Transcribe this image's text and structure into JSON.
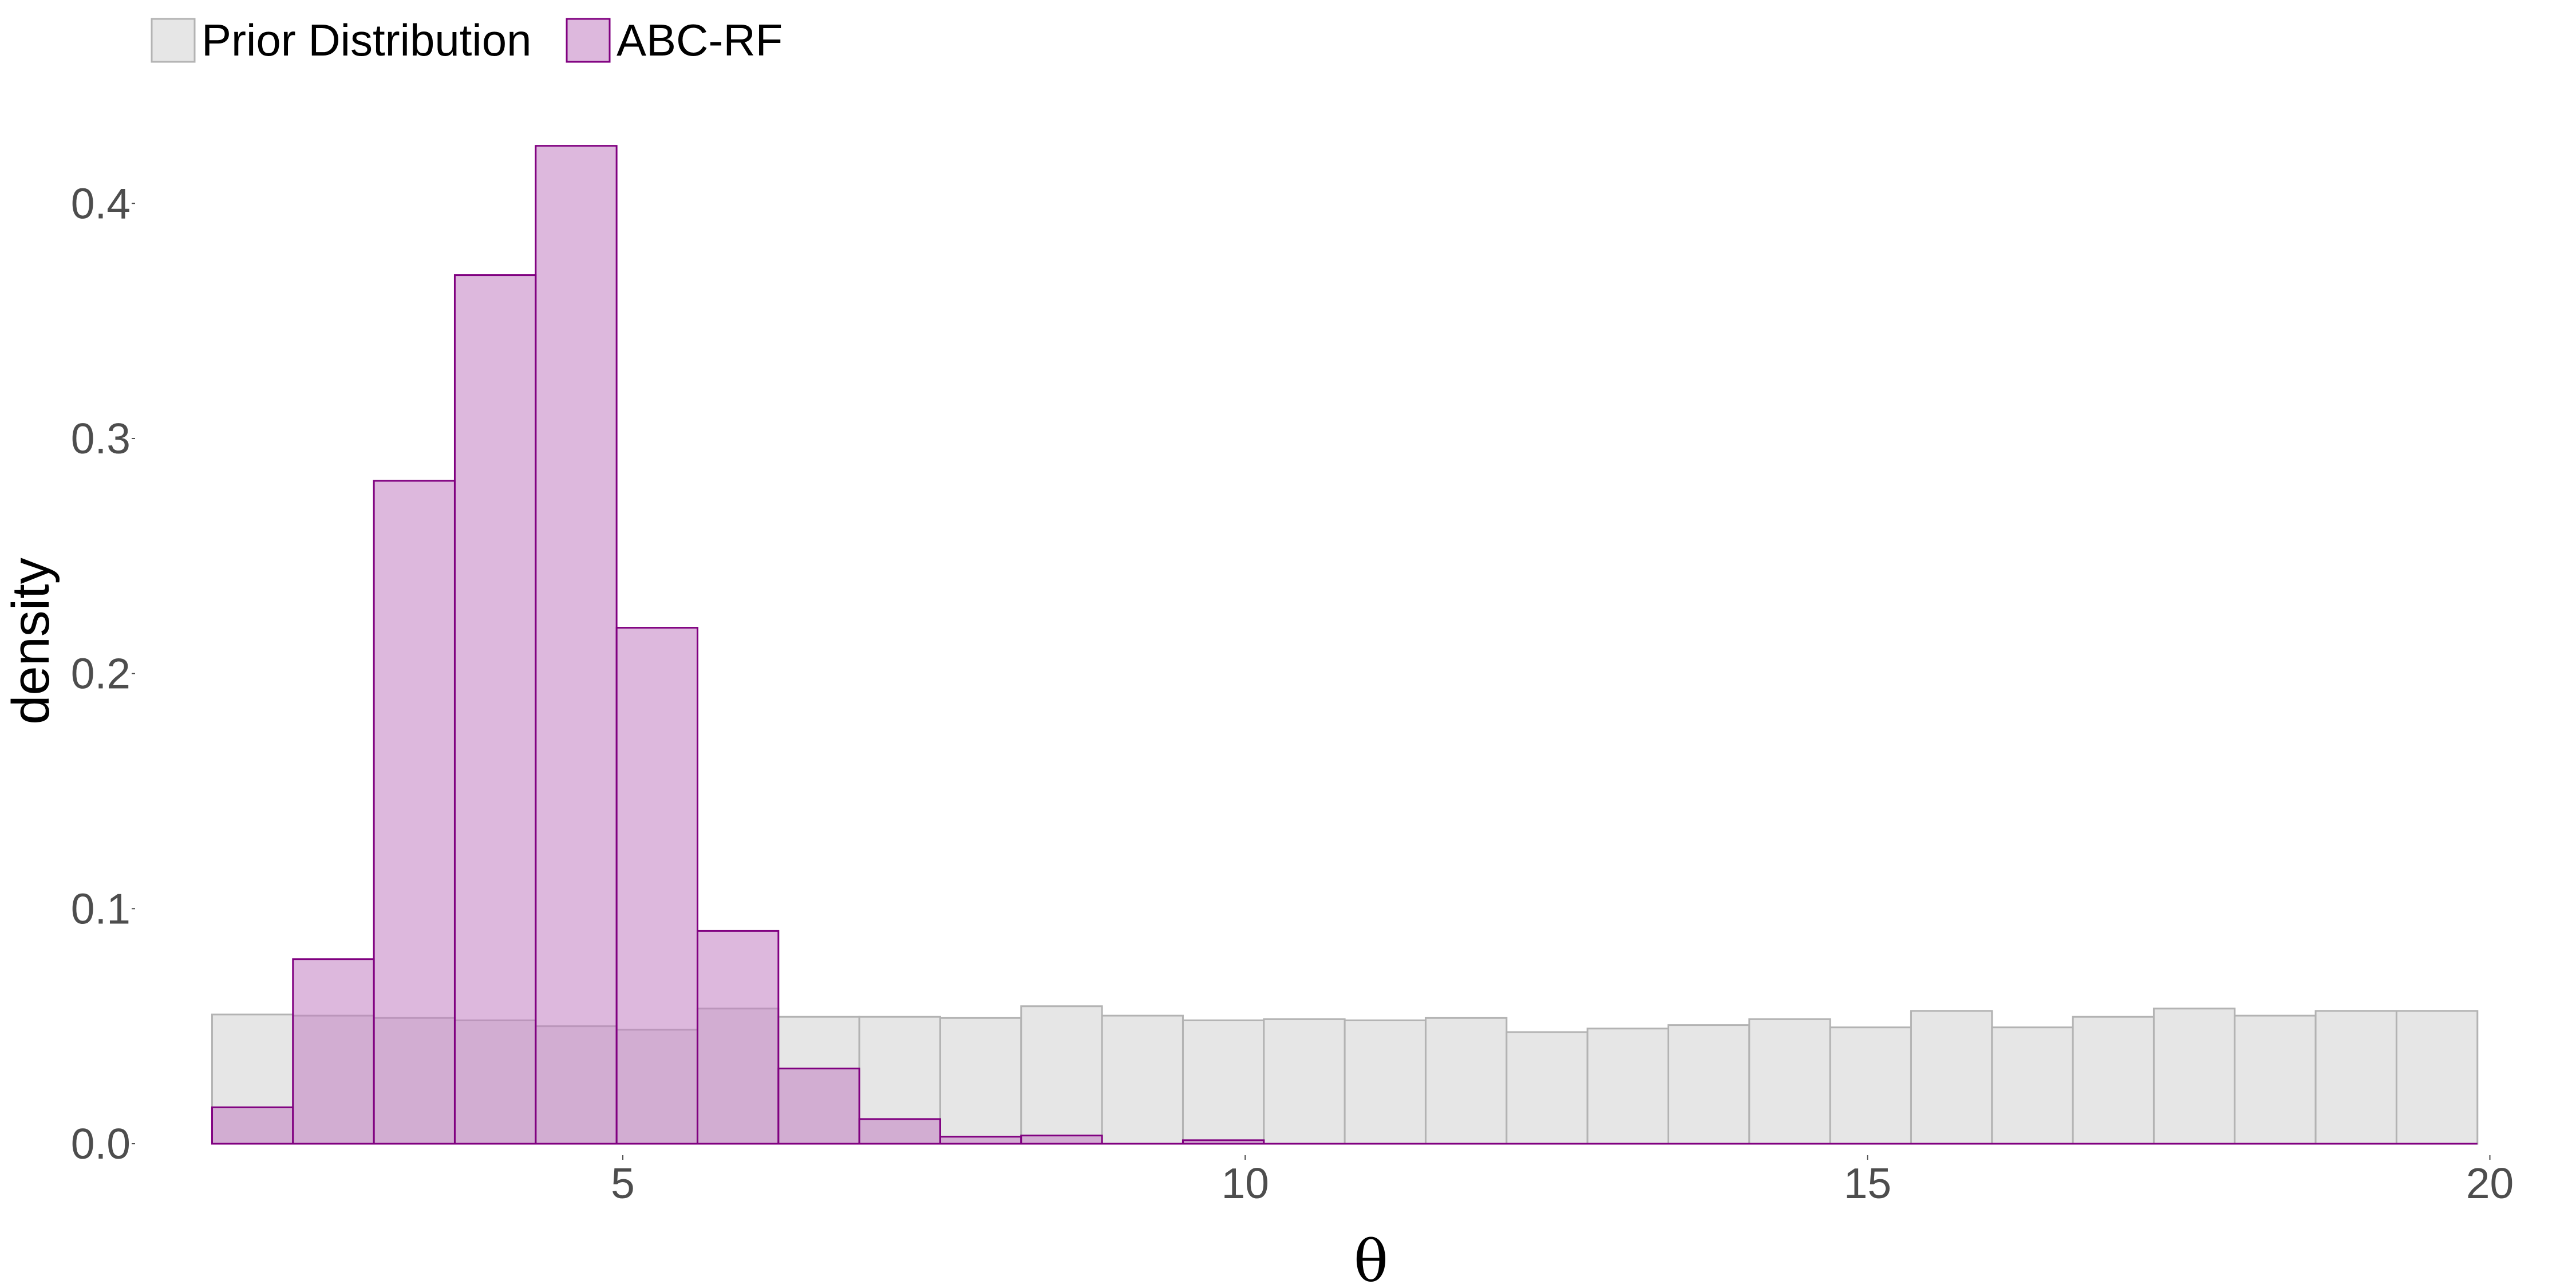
{
  "chart_data": {
    "type": "bar",
    "title": "",
    "xlabel": "θ",
    "ylabel": "density",
    "xlim": [
      1.1,
      20.6
    ],
    "ylim": [
      0,
      0.45
    ],
    "x_ticks": [
      5,
      10,
      15,
      20
    ],
    "y_ticks": [
      0.0,
      0.1,
      0.2,
      0.3,
      0.4
    ],
    "x_tick_labels": [
      "5",
      "10",
      "15",
      "20"
    ],
    "y_tick_labels": [
      "0.0",
      "0.1",
      "0.2",
      "0.3",
      "0.4"
    ],
    "grid": false,
    "legend_position": "top-left",
    "bin_edges": [
      1.7,
      2.35,
      3.0,
      3.65,
      4.3,
      4.95,
      5.6,
      6.25,
      6.9,
      7.55,
      8.2,
      8.85,
      9.5,
      10.15,
      10.8,
      11.45,
      12.1,
      12.75,
      13.4,
      14.05,
      14.7,
      15.35,
      16.0,
      16.65,
      17.3,
      17.95,
      18.6,
      19.25,
      19.9
    ],
    "series": [
      {
        "name": "Prior Distribution",
        "fill": "#e6e6e6",
        "stroke": "#b3b3b3",
        "values": [
          0.055,
          0.0545,
          0.0535,
          0.0525,
          0.05,
          0.0485,
          0.0575,
          0.054,
          0.054,
          0.0535,
          0.0585,
          0.0545,
          0.0525,
          0.053,
          0.0525,
          0.0535,
          0.0475,
          0.049,
          0.0505,
          0.053,
          0.0495,
          0.0565,
          0.0495,
          0.054,
          0.0575,
          0.0545,
          0.0565,
          0.0565
        ]
      },
      {
        "name": "ABC-RF",
        "fill": "#c17ec1",
        "fill_opacity": 0.55,
        "stroke": "#800080",
        "values": [
          0.0155,
          0.0785,
          0.282,
          0.3695,
          0.4245,
          0.2195,
          0.0905,
          0.032,
          0.0105,
          0.003,
          0.0035,
          0.0,
          0.0015,
          0.0,
          0.0,
          0.0,
          0.0,
          0.0,
          0.0,
          0.0,
          0.0,
          0.0,
          0.0,
          0.0,
          0.0,
          0.0,
          0.0,
          0.0
        ]
      }
    ]
  }
}
